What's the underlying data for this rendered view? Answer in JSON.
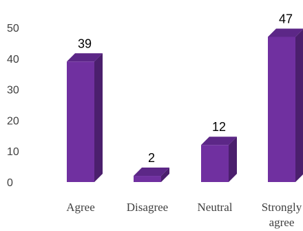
{
  "chart_data": {
    "type": "bar",
    "title": "",
    "xlabel": "",
    "ylabel": "",
    "categories": [
      "Agree",
      "Disagree",
      "Neutral",
      "Strongly agree"
    ],
    "category_lines": [
      [
        "Agree"
      ],
      [
        "Disagree"
      ],
      [
        "Neutral"
      ],
      [
        "Strongly",
        "agree"
      ]
    ],
    "values": [
      39,
      2,
      12,
      47
    ],
    "ylim": [
      0,
      50
    ],
    "yticks": [
      0,
      10,
      20,
      30,
      40,
      50
    ],
    "grid": false,
    "legend": "none",
    "style": "3d",
    "colors": {
      "front": "#7030a0",
      "side": "#4b1f6d",
      "top": "#5c2787"
    }
  }
}
